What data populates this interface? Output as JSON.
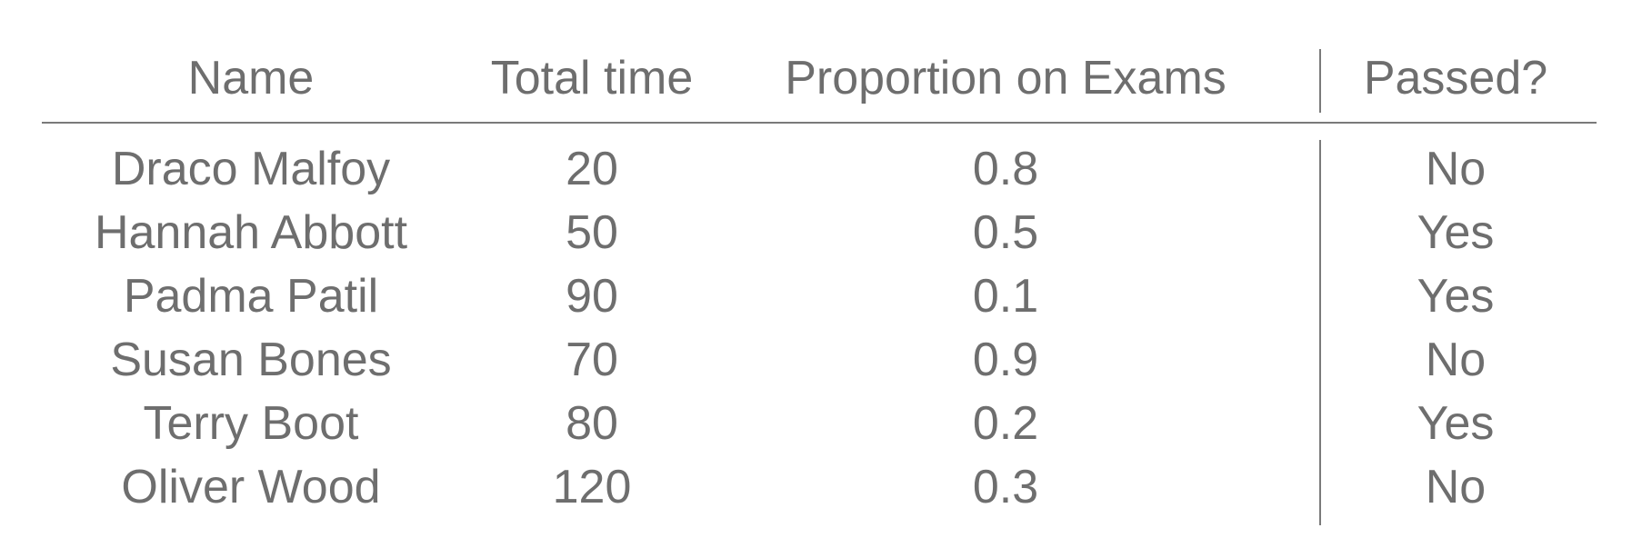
{
  "table": {
    "headers": [
      "Name",
      "Total time",
      "Proportion on Exams",
      "Passed?"
    ],
    "rows": [
      [
        "Draco Malfoy",
        "20",
        "0.8",
        "No"
      ],
      [
        "Hannah Abbott",
        "50",
        "0.5",
        "Yes"
      ],
      [
        "Padma Patil",
        "90",
        "0.1",
        "Yes"
      ],
      [
        "Susan Bones",
        "70",
        "0.9",
        "No"
      ],
      [
        "Terry Boot",
        "80",
        "0.2",
        "Yes"
      ],
      [
        "Oliver Wood",
        "120",
        "0.3",
        "No"
      ]
    ]
  }
}
